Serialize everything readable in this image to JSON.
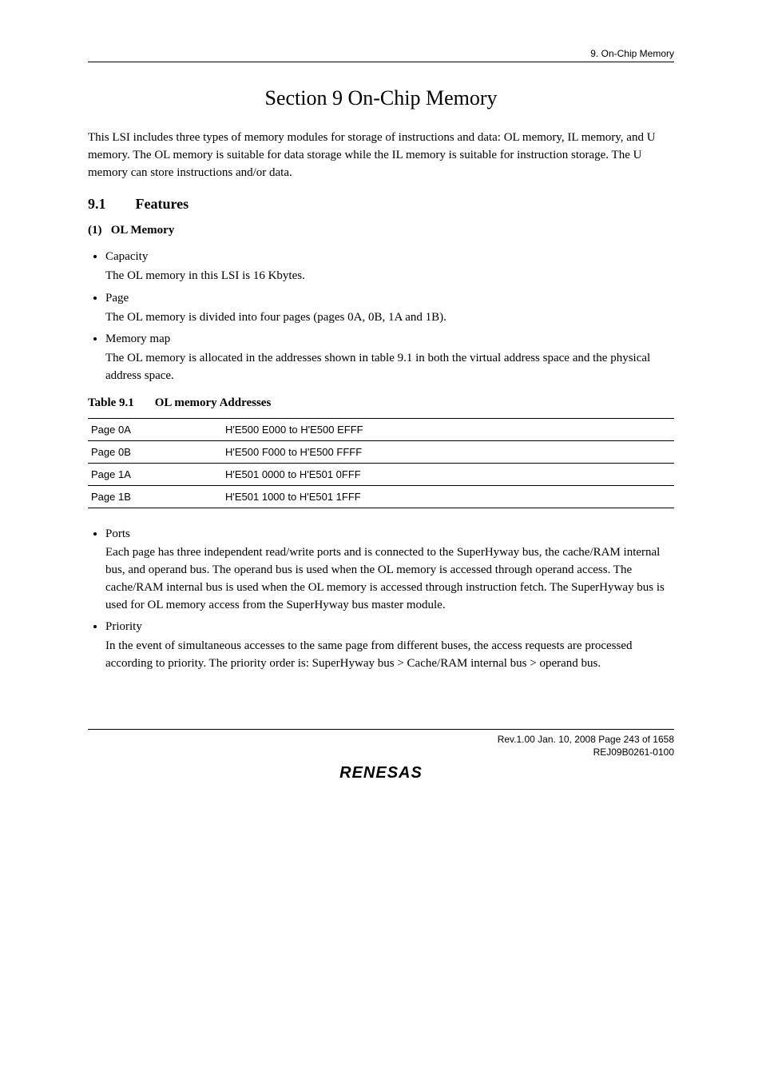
{
  "header": {
    "running_head": "9.   On-Chip Memory"
  },
  "title": "Section 9   On-Chip Memory",
  "intro": "This LSI includes three types of memory modules for storage of instructions and data: OL memory, IL memory, and U memory. The OL memory is suitable for data storage while the IL memory is suitable for instruction storage.  The U memory can store instructions and/or data.",
  "sec91": {
    "num": "9.1",
    "title": "Features"
  },
  "sub1": {
    "label": "(1)",
    "title": "OL Memory"
  },
  "bullets1": {
    "capacity_label": "Capacity",
    "capacity_body": "The OL memory in this LSI is 16 Kbytes.",
    "page_label": "Page",
    "page_body": "The OL memory is divided into four pages (pages 0A, 0B, 1A and 1B).",
    "memmap_label": "Memory map",
    "memmap_body": "The OL memory is allocated in the addresses shown in table 9.1 in both the virtual address space and the physical address space."
  },
  "table_caption": {
    "num": "Table 9.1",
    "title": "OL memory Addresses"
  },
  "table_rows": [
    {
      "page": "Page 0A",
      "range": "H'E500 E000 to H'E500 EFFF"
    },
    {
      "page": "Page 0B",
      "range": "H'E500 F000 to H'E500 FFFF"
    },
    {
      "page": "Page 1A",
      "range": "H'E501 0000 to H'E501 0FFF"
    },
    {
      "page": "Page 1B",
      "range": "H'E501 1000 to H'E501 1FFF"
    }
  ],
  "bullets2": {
    "ports_label": "Ports",
    "ports_body": "Each page has three independent read/write ports and is connected to the SuperHyway bus, the cache/RAM internal bus, and operand bus. The operand bus is used when the OL memory is accessed through operand access. The cache/RAM internal bus is used when the OL memory is accessed through instruction fetch. The SuperHyway bus is used for OL memory access from the SuperHyway bus master module.",
    "priority_label": "Priority",
    "priority_body": "In the event of simultaneous accesses to the same page from different buses, the access requests are processed according to priority. The priority order is: SuperHyway bus > Cache/RAM internal bus > operand bus."
  },
  "footer": {
    "line1": "Rev.1.00  Jan. 10, 2008  Page 243 of 1658",
    "line2": "REJ09B0261-0100",
    "logo": "RENESAS"
  }
}
